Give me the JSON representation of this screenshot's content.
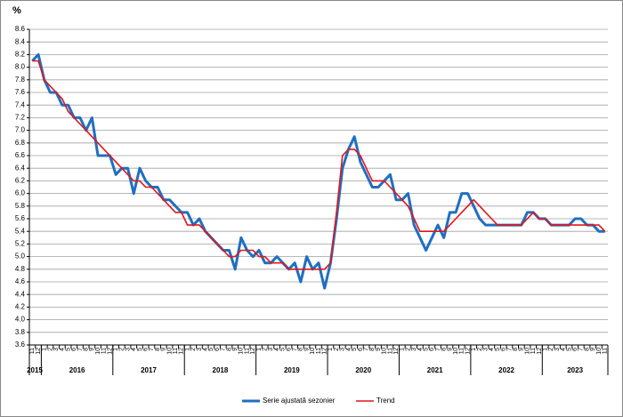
{
  "chart_data": {
    "type": "line",
    "y_label": "%",
    "groups": [
      {
        "year": "2015",
        "months": [
          "11",
          "12"
        ]
      },
      {
        "year": "2016",
        "months": [
          "1",
          "2",
          "3",
          "4",
          "5",
          "6",
          "7",
          "8",
          "9",
          "10",
          "11",
          "12"
        ]
      },
      {
        "year": "2017",
        "months": [
          "1",
          "2",
          "3",
          "4",
          "5",
          "6",
          "7",
          "8",
          "9",
          "10",
          "11",
          "12"
        ]
      },
      {
        "year": "2018",
        "months": [
          "1",
          "2",
          "3",
          "4",
          "5",
          "6",
          "7",
          "8",
          "9",
          "10",
          "11",
          "12"
        ]
      },
      {
        "year": "2019",
        "months": [
          "1",
          "2",
          "3",
          "4",
          "5",
          "6",
          "7",
          "8",
          "9",
          "10",
          "11",
          "12"
        ]
      },
      {
        "year": "2020",
        "months": [
          "1",
          "2",
          "3",
          "4",
          "5",
          "6",
          "7",
          "8",
          "9",
          "10",
          "11",
          "12"
        ]
      },
      {
        "year": "2021",
        "months": [
          "1",
          "2",
          "3",
          "4",
          "5",
          "6",
          "7",
          "8",
          "9",
          "10",
          "11",
          "12"
        ]
      },
      {
        "year": "2022",
        "months": [
          "1",
          "2",
          "3",
          "4",
          "5",
          "6",
          "7",
          "8",
          "9",
          "10",
          "11",
          "12"
        ]
      },
      {
        "year": "2023",
        "months": [
          "1",
          "2",
          "3",
          "4",
          "5",
          "6",
          "7",
          "8",
          "9",
          "10",
          "11"
        ]
      }
    ],
    "series": [
      {
        "name": "Serie ajustată sezonier",
        "color": "#1f6fc1",
        "width": 3,
        "values": [
          8.1,
          8.2,
          7.8,
          7.6,
          7.6,
          7.4,
          7.4,
          7.2,
          7.2,
          7.0,
          7.2,
          6.6,
          6.6,
          6.6,
          6.3,
          6.4,
          6.4,
          6.0,
          6.4,
          6.2,
          6.1,
          6.1,
          5.9,
          5.9,
          5.8,
          5.7,
          5.7,
          5.5,
          5.6,
          5.4,
          5.3,
          5.2,
          5.1,
          5.1,
          4.8,
          5.3,
          5.1,
          5.0,
          5.1,
          4.9,
          4.9,
          5.0,
          4.9,
          4.8,
          4.9,
          4.6,
          5.0,
          4.8,
          4.9,
          4.5,
          4.9,
          5.6,
          6.4,
          6.7,
          6.9,
          6.5,
          6.3,
          6.1,
          6.1,
          6.2,
          6.3,
          5.9,
          5.9,
          6.0,
          5.5,
          5.3,
          5.1,
          5.3,
          5.5,
          5.3,
          5.7,
          5.7,
          6.0,
          6.0,
          5.8,
          5.6,
          5.5,
          5.5,
          5.5,
          5.5,
          5.5,
          5.5,
          5.5,
          5.7,
          5.7,
          5.6,
          5.6,
          5.5,
          5.5,
          5.5,
          5.5,
          5.6,
          5.6,
          5.5,
          5.5,
          5.4,
          5.4
        ]
      },
      {
        "name": "Trend",
        "color": "#e0161b",
        "width": 1.6,
        "values": [
          8.1,
          8.1,
          7.8,
          7.7,
          7.6,
          7.5,
          7.3,
          7.2,
          7.1,
          7.0,
          6.9,
          6.8,
          6.7,
          6.6,
          6.5,
          6.4,
          6.3,
          6.2,
          6.2,
          6.1,
          6.1,
          6.0,
          5.9,
          5.8,
          5.7,
          5.7,
          5.5,
          5.5,
          5.5,
          5.4,
          5.3,
          5.2,
          5.1,
          5.0,
          5.0,
          5.1,
          5.1,
          5.1,
          5.0,
          5.0,
          4.9,
          4.9,
          4.9,
          4.8,
          4.8,
          4.8,
          4.8,
          4.8,
          4.8,
          4.8,
          4.9,
          5.7,
          6.6,
          6.7,
          6.7,
          6.6,
          6.4,
          6.2,
          6.2,
          6.2,
          6.1,
          6.0,
          5.9,
          5.8,
          5.6,
          5.4,
          5.4,
          5.4,
          5.4,
          5.4,
          5.5,
          5.6,
          5.7,
          5.8,
          5.9,
          5.8,
          5.7,
          5.6,
          5.5,
          5.5,
          5.5,
          5.5,
          5.5,
          5.6,
          5.7,
          5.6,
          5.6,
          5.5,
          5.5,
          5.5,
          5.5,
          5.5,
          5.5,
          5.5,
          5.5,
          5.5,
          5.4
        ]
      }
    ],
    "ylim": [
      3.6,
      8.6
    ],
    "yticks": [
      3.6,
      3.8,
      {
        "value": 4,
        "label": "4.0"
      },
      4.2,
      4.4,
      4.6,
      4.8,
      {
        "value": 5,
        "label": "5.0"
      },
      5.2,
      5.4,
      5.6,
      5.8,
      {
        "value": 6,
        "label": "6.0"
      },
      6.2,
      6.4,
      6.6,
      6.8,
      {
        "value": 7,
        "label": "7.0"
      },
      7.2,
      7.4,
      7.6,
      7.8,
      {
        "value": 8,
        "label": "8.0"
      },
      8.2,
      8.4,
      8.6
    ],
    "grid": true,
    "legend": "bottom"
  }
}
